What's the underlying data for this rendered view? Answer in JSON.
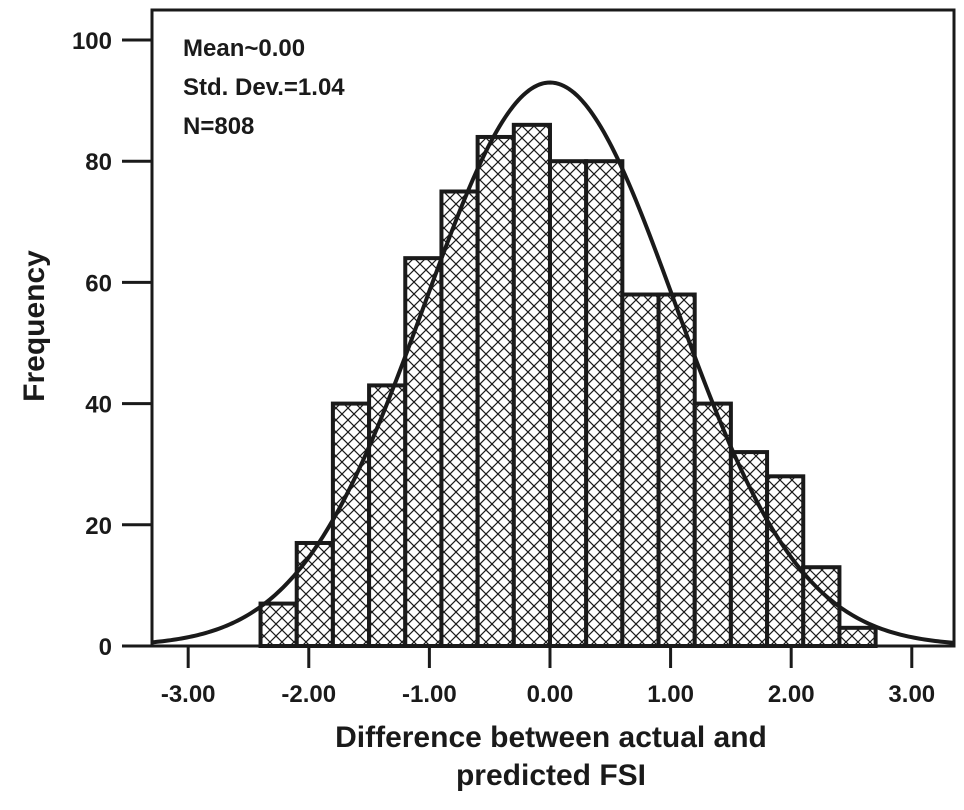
{
  "chart_data": {
    "type": "bar",
    "xlabel_lines": [
      "Difference between actual and",
      "predicted FSI"
    ],
    "ylabel": "Frequency",
    "xlim": [
      -3.3,
      3.35
    ],
    "ylim": [
      0,
      100
    ],
    "x_ticks": [
      -3.0,
      -2.0,
      -1.0,
      0.0,
      1.0,
      2.0,
      3.0
    ],
    "x_tick_labels": [
      "-3.00",
      "-2.00",
      "-1.00",
      "0.00",
      "1.00",
      "2.00",
      "3.00"
    ],
    "y_ticks": [
      0,
      20,
      40,
      60,
      80,
      100
    ],
    "y_tick_labels": [
      "0",
      "20",
      "40",
      "60",
      "80",
      "100"
    ],
    "bin_edges": [
      -2.4,
      -2.1,
      -1.8,
      -1.5,
      -1.2,
      -0.9,
      -0.6,
      -0.3,
      0.0,
      0.3,
      0.6,
      0.9,
      1.2,
      1.5,
      1.8,
      2.1,
      2.4,
      2.7
    ],
    "values": [
      7,
      17,
      40,
      43,
      64,
      75,
      84,
      86,
      80,
      80,
      58,
      58,
      40,
      32,
      28,
      13,
      3
    ],
    "normal_curve": {
      "mean": 0.0,
      "std": 1.04,
      "n": 808,
      "bin_width": 0.3
    },
    "stats_lines": [
      "Mean~0.00",
      "Std. Dev.=1.04",
      "N=808"
    ],
    "grid": false,
    "legend": "none",
    "colors": {
      "ink": "#1a1a1a",
      "bar_fill": "#ffffff",
      "hatch": "#1a1a1a"
    }
  }
}
